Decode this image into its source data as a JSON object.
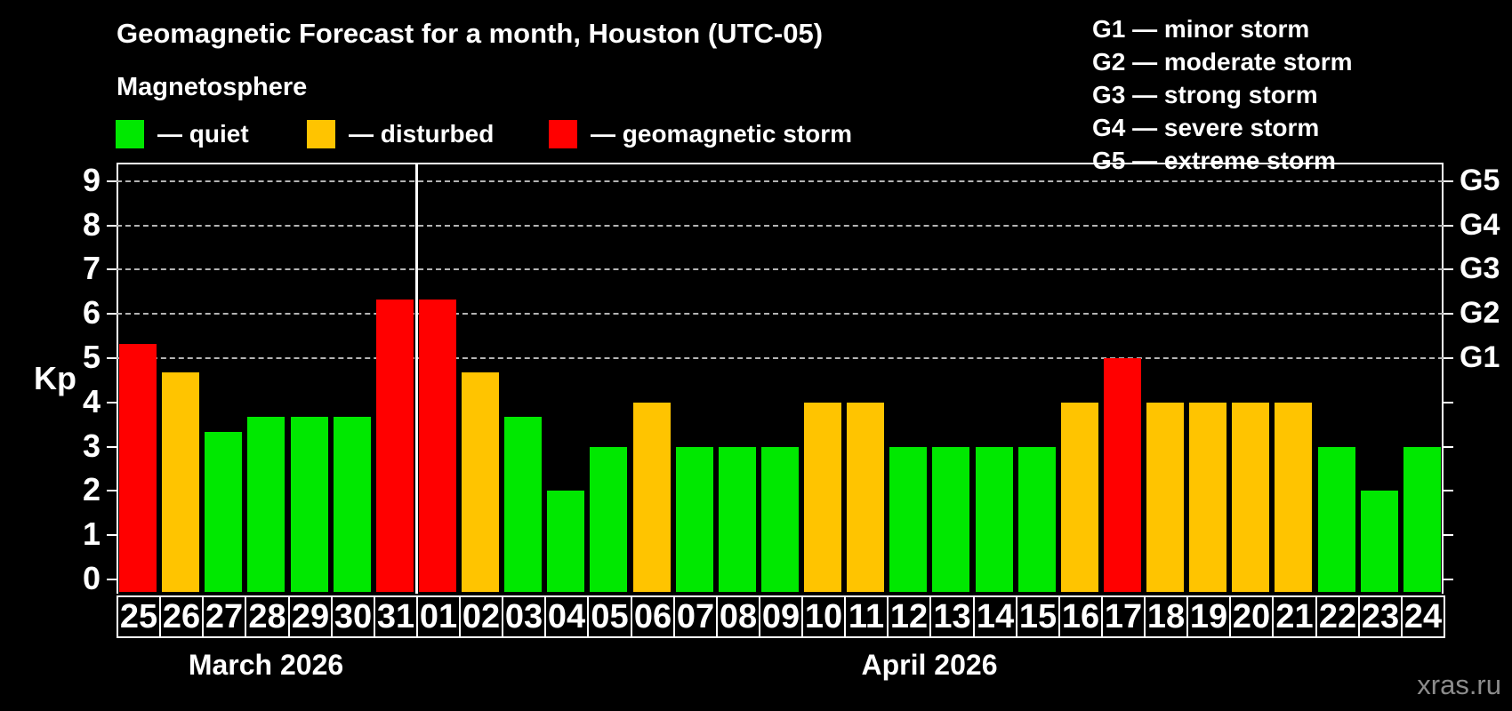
{
  "page": {
    "title": "Geomagnetic Forecast for a month, Houston (UTC-05)",
    "subtitle": "Magnetosphere",
    "watermark": "xras.ru"
  },
  "legend": {
    "items": [
      {
        "status": "quiet",
        "label": "— quiet"
      },
      {
        "status": "disturbed",
        "label": "— disturbed"
      },
      {
        "status": "storm",
        "label": "— geomagnetic storm"
      }
    ]
  },
  "g_legend": {
    "lines": [
      "G1 — minor storm",
      "G2 — moderate storm",
      "G3 — strong storm",
      "G4 — severe storm",
      "G5 — extreme storm"
    ]
  },
  "colors": {
    "quiet": "#00e800",
    "disturbed": "#ffc400",
    "storm": "#ff0000",
    "background": "#000000",
    "text": "#ffffff",
    "grid": "#b4b4b4",
    "watermark": "#8c8c8c"
  },
  "chart_data": {
    "type": "bar",
    "title": "Geomagnetic Forecast for a month, Houston (UTC-05)",
    "ylabel": "Kp",
    "ylim": [
      0,
      9.4
    ],
    "yticks": [
      0,
      1,
      2,
      3,
      4,
      5,
      6,
      7,
      8,
      9
    ],
    "gridlines": [
      5,
      6,
      7,
      8,
      9
    ],
    "grid_on": true,
    "legend_position": "top",
    "g_levels": [
      {
        "level": 5,
        "label": "G1"
      },
      {
        "level": 6,
        "label": "G2"
      },
      {
        "level": 7,
        "label": "G3"
      },
      {
        "level": 8,
        "label": "G4"
      },
      {
        "level": 9,
        "label": "G5"
      }
    ],
    "months": [
      {
        "label": "March 2026",
        "count": 7
      },
      {
        "label": "April 2026",
        "count": 24
      }
    ],
    "bars": [
      {
        "day": "25",
        "value": 5.33,
        "status": "storm"
      },
      {
        "day": "26",
        "value": 4.67,
        "status": "disturbed"
      },
      {
        "day": "27",
        "value": 3.33,
        "status": "quiet"
      },
      {
        "day": "28",
        "value": 3.67,
        "status": "quiet"
      },
      {
        "day": "29",
        "value": 3.67,
        "status": "quiet"
      },
      {
        "day": "30",
        "value": 3.67,
        "status": "quiet"
      },
      {
        "day": "31",
        "value": 6.33,
        "status": "storm"
      },
      {
        "day": "01",
        "value": 6.33,
        "status": "storm"
      },
      {
        "day": "02",
        "value": 4.67,
        "status": "disturbed"
      },
      {
        "day": "03",
        "value": 3.67,
        "status": "quiet"
      },
      {
        "day": "04",
        "value": 2.0,
        "status": "quiet"
      },
      {
        "day": "05",
        "value": 3.0,
        "status": "quiet"
      },
      {
        "day": "06",
        "value": 4.0,
        "status": "disturbed"
      },
      {
        "day": "07",
        "value": 3.0,
        "status": "quiet"
      },
      {
        "day": "08",
        "value": 3.0,
        "status": "quiet"
      },
      {
        "day": "09",
        "value": 3.0,
        "status": "quiet"
      },
      {
        "day": "10",
        "value": 4.0,
        "status": "disturbed"
      },
      {
        "day": "11",
        "value": 4.0,
        "status": "disturbed"
      },
      {
        "day": "12",
        "value": 3.0,
        "status": "quiet"
      },
      {
        "day": "13",
        "value": 3.0,
        "status": "quiet"
      },
      {
        "day": "14",
        "value": 3.0,
        "status": "quiet"
      },
      {
        "day": "15",
        "value": 3.0,
        "status": "quiet"
      },
      {
        "day": "16",
        "value": 4.0,
        "status": "disturbed"
      },
      {
        "day": "17",
        "value": 5.0,
        "status": "storm"
      },
      {
        "day": "18",
        "value": 4.0,
        "status": "disturbed"
      },
      {
        "day": "19",
        "value": 4.0,
        "status": "disturbed"
      },
      {
        "day": "20",
        "value": 4.0,
        "status": "disturbed"
      },
      {
        "day": "21",
        "value": 4.0,
        "status": "disturbed"
      },
      {
        "day": "22",
        "value": 3.0,
        "status": "quiet"
      },
      {
        "day": "23",
        "value": 2.0,
        "status": "quiet"
      },
      {
        "day": "24",
        "value": 3.0,
        "status": "quiet"
      }
    ]
  }
}
